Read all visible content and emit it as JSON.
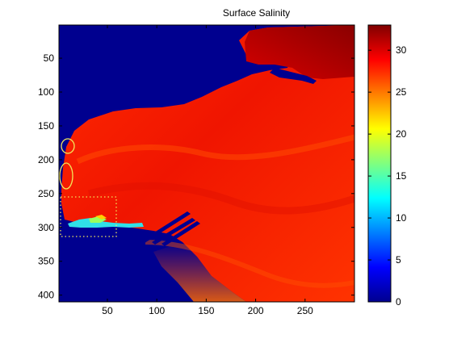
{
  "chart_data": {
    "type": "heatmap",
    "title": "Surface Salinity",
    "xlabel": "",
    "ylabel": "",
    "xlim": [
      1,
      300
    ],
    "ylim": [
      410,
      1
    ],
    "x_ticks": [
      50,
      100,
      150,
      200,
      250
    ],
    "y_ticks": [
      50,
      100,
      150,
      200,
      250,
      300,
      350,
      400
    ],
    "colorbar": {
      "colormap": "jet",
      "range": [
        0,
        33
      ],
      "ticks": [
        0,
        5,
        10,
        15,
        20,
        25,
        30
      ]
    },
    "land_color": "#00008f",
    "annotations": [
      {
        "shape": "ellipse",
        "color": "#f2e85a",
        "center": [
          9,
          180
        ],
        "radius": [
          7,
          8
        ]
      },
      {
        "shape": "ellipse",
        "color": "#f2e85a",
        "center": [
          8,
          222
        ],
        "radius": [
          7,
          14
        ]
      },
      {
        "shape": "dotted-rectangle",
        "color": "#f2e85a",
        "x_range": [
          1,
          60
        ],
        "y_range": [
          257,
          314
        ]
      }
    ]
  }
}
